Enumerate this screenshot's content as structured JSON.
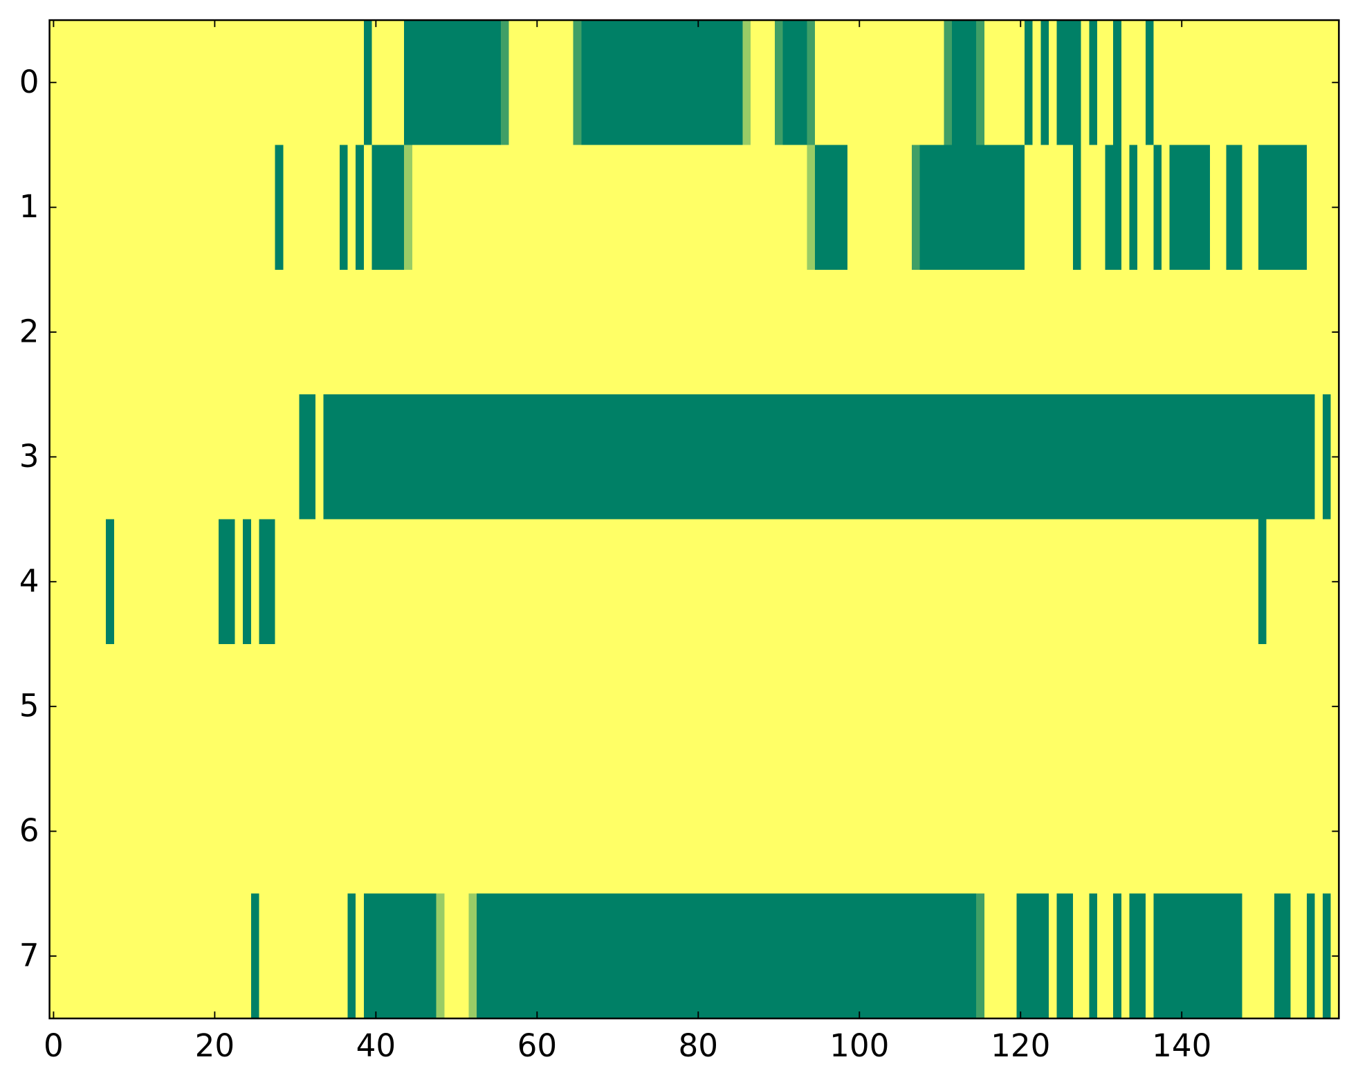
{
  "chart_data": {
    "type": "heatmap",
    "colormap": "summer_r",
    "xlim": [
      -0.5,
      159.5
    ],
    "ylim": [
      7.5,
      -0.5
    ],
    "xticks": [
      0,
      20,
      40,
      60,
      80,
      100,
      120,
      140
    ],
    "yticks": [
      0,
      1,
      2,
      3,
      4,
      5,
      6,
      7
    ],
    "z": [
      [
        0,
        0,
        0,
        0,
        0,
        0,
        0,
        0,
        0,
        0,
        0,
        0,
        0,
        0,
        0,
        0,
        0,
        0,
        0,
        0,
        0,
        0,
        0,
        0,
        0,
        0,
        0,
        0,
        0,
        0,
        0,
        0,
        0,
        0,
        0,
        0,
        0,
        0,
        0,
        1,
        0,
        0,
        0,
        0,
        1,
        1,
        1,
        1,
        1,
        1,
        1,
        1,
        1,
        1,
        1,
        1,
        0.75,
        0,
        0,
        0,
        0,
        0,
        0,
        0,
        0,
        0.75,
        1,
        1,
        1,
        1,
        1,
        1,
        1,
        1,
        1,
        1,
        1,
        1,
        1,
        1,
        1,
        1,
        1,
        1,
        1,
        1,
        0.4,
        0,
        0,
        0,
        0.75,
        1,
        1,
        1,
        0.75,
        0,
        0,
        0,
        0,
        0,
        0,
        0,
        0,
        0,
        0,
        0,
        0,
        0,
        0,
        0,
        0,
        0.75,
        1,
        1,
        1,
        0.75,
        0,
        0,
        0,
        0,
        0,
        1,
        0,
        1,
        0,
        1,
        1,
        1,
        0,
        1,
        0,
        0,
        1,
        0,
        0,
        0,
        1,
        0,
        0,
        0,
        0,
        0,
        0,
        0,
        0,
        0,
        0,
        0,
        0,
        0,
        0,
        0,
        0,
        0,
        0,
        0,
        0,
        0,
        0,
        0
      ],
      [
        0,
        0,
        0,
        0,
        0,
        0,
        0,
        0,
        0,
        0,
        0,
        0,
        0,
        0,
        0,
        0,
        0,
        0,
        0,
        0,
        0,
        0,
        0,
        0,
        0,
        0,
        0,
        0,
        1,
        0,
        0,
        0,
        0,
        0,
        0,
        0,
        1,
        0,
        1,
        0,
        1,
        1,
        1,
        1,
        0.4,
        0,
        0,
        0,
        0,
        0,
        0,
        0,
        0,
        0,
        0,
        0,
        0,
        0,
        0,
        0,
        0,
        0,
        0,
        0,
        0,
        0,
        0,
        0,
        0,
        0,
        0,
        0,
        0,
        0,
        0,
        0,
        0,
        0,
        0,
        0,
        0,
        0,
        0,
        0,
        0,
        0,
        0,
        0,
        0,
        0,
        0,
        0,
        0,
        0,
        0.4,
        1,
        1,
        1,
        1,
        0,
        0,
        0,
        0,
        0,
        0,
        0,
        0,
        0.75,
        1,
        1,
        1,
        1,
        1,
        1,
        1,
        1,
        1,
        1,
        1,
        1,
        1,
        0,
        0,
        0,
        0,
        0,
        0,
        1,
        0,
        0,
        0,
        1,
        1,
        0,
        1,
        0,
        0,
        1,
        0,
        1,
        1,
        1,
        1,
        1,
        0,
        0,
        1,
        1,
        0,
        0,
        1,
        1,
        1,
        1,
        1,
        1,
        0,
        0,
        0,
        0
      ],
      [
        0,
        0,
        0,
        0,
        0,
        0,
        0,
        0,
        0,
        0,
        0,
        0,
        0,
        0,
        0,
        0,
        0,
        0,
        0,
        0,
        0,
        0,
        0,
        0,
        0,
        0,
        0,
        0,
        0,
        0,
        0,
        0,
        0,
        0,
        0,
        0,
        0,
        0,
        0,
        0,
        0,
        0,
        0,
        0,
        0,
        0,
        0,
        0,
        0,
        0,
        0,
        0,
        0,
        0,
        0,
        0,
        0,
        0,
        0,
        0,
        0,
        0,
        0,
        0,
        0,
        0,
        0,
        0,
        0,
        0,
        0,
        0,
        0,
        0,
        0,
        0,
        0,
        0,
        0,
        0,
        0,
        0,
        0,
        0,
        0,
        0,
        0,
        0,
        0,
        0,
        0,
        0,
        0,
        0,
        0,
        0,
        0,
        0,
        0,
        0,
        0,
        0,
        0,
        0,
        0,
        0,
        0,
        0,
        0,
        0,
        0,
        0,
        0,
        0,
        0,
        0,
        0,
        0,
        0,
        0,
        0,
        0,
        0,
        0,
        0,
        0,
        0,
        0,
        0,
        0,
        0,
        0,
        0,
        0,
        0,
        0,
        0,
        0,
        0,
        0,
        0,
        0,
        0,
        0,
        0,
        0,
        0,
        0,
        0,
        0,
        0,
        0,
        0,
        0,
        0,
        0,
        0,
        0,
        0,
        0
      ],
      [
        0,
        0,
        0,
        0,
        0,
        0,
        0,
        0,
        0,
        0,
        0,
        0,
        0,
        0,
        0,
        0,
        0,
        0,
        0,
        0,
        0,
        0,
        0,
        0,
        0,
        0,
        0,
        0,
        0,
        0,
        0,
        1,
        1,
        0,
        1,
        1,
        1,
        1,
        1,
        1,
        1,
        1,
        1,
        1,
        1,
        1,
        1,
        1,
        1,
        1,
        1,
        1,
        1,
        1,
        1,
        1,
        1,
        1,
        1,
        1,
        1,
        1,
        1,
        1,
        1,
        1,
        1,
        1,
        1,
        1,
        1,
        1,
        1,
        1,
        1,
        1,
        1,
        1,
        1,
        1,
        1,
        1,
        1,
        1,
        1,
        1,
        1,
        1,
        1,
        1,
        1,
        1,
        1,
        1,
        1,
        1,
        1,
        1,
        1,
        1,
        1,
        1,
        1,
        1,
        1,
        1,
        1,
        1,
        1,
        1,
        1,
        1,
        1,
        1,
        1,
        1,
        1,
        1,
        1,
        1,
        1,
        1,
        1,
        1,
        1,
        1,
        1,
        1,
        1,
        1,
        1,
        1,
        1,
        1,
        1,
        1,
        1,
        1,
        1,
        1,
        1,
        1,
        1,
        1,
        1,
        1,
        1,
        1,
        1,
        1,
        1,
        1,
        1,
        1,
        1,
        1,
        1,
        0,
        1,
        0
      ],
      [
        0,
        0,
        0,
        0,
        0,
        0,
        0,
        1,
        0,
        0,
        0,
        0,
        0,
        0,
        0,
        0,
        0,
        0,
        0,
        0,
        0,
        1,
        1,
        0,
        1,
        0,
        1,
        1,
        0,
        0,
        0,
        0,
        0,
        0,
        0,
        0,
        0,
        0,
        0,
        0,
        0,
        0,
        0,
        0,
        0,
        0,
        0,
        0,
        0,
        0,
        0,
        0,
        0,
        0,
        0,
        0,
        0,
        0,
        0,
        0,
        0,
        0,
        0,
        0,
        0,
        0,
        0,
        0,
        0,
        0,
        0,
        0,
        0,
        0,
        0,
        0,
        0,
        0,
        0,
        0,
        0,
        0,
        0,
        0,
        0,
        0,
        0,
        0,
        0,
        0,
        0,
        0,
        0,
        0,
        0,
        0,
        0,
        0,
        0,
        0,
        0,
        0,
        0,
        0,
        0,
        0,
        0,
        0,
        0,
        0,
        0,
        0,
        0,
        0,
        0,
        0,
        0,
        0,
        0,
        0,
        0,
        0,
        0,
        0,
        0,
        0,
        0,
        0,
        0,
        0,
        0,
        0,
        0,
        0,
        0,
        0,
        0,
        0,
        0,
        0,
        0,
        0,
        0,
        0,
        0,
        0,
        0,
        0,
        0,
        0,
        1,
        0,
        0,
        0,
        0,
        0,
        0,
        0,
        0,
        0
      ],
      [
        0,
        0,
        0,
        0,
        0,
        0,
        0,
        0,
        0,
        0,
        0,
        0,
        0,
        0,
        0,
        0,
        0,
        0,
        0,
        0,
        0,
        0,
        0,
        0,
        0,
        0,
        0,
        0,
        0,
        0,
        0,
        0,
        0,
        0,
        0,
        0,
        0,
        0,
        0,
        0,
        0,
        0,
        0,
        0,
        0,
        0,
        0,
        0,
        0,
        0,
        0,
        0,
        0,
        0,
        0,
        0,
        0,
        0,
        0,
        0,
        0,
        0,
        0,
        0,
        0,
        0,
        0,
        0,
        0,
        0,
        0,
        0,
        0,
        0,
        0,
        0,
        0,
        0,
        0,
        0,
        0,
        0,
        0,
        0,
        0,
        0,
        0,
        0,
        0,
        0,
        0,
        0,
        0,
        0,
        0,
        0,
        0,
        0,
        0,
        0,
        0,
        0,
        0,
        0,
        0,
        0,
        0,
        0,
        0,
        0,
        0,
        0,
        0,
        0,
        0,
        0,
        0,
        0,
        0,
        0,
        0,
        0,
        0,
        0,
        0,
        0,
        0,
        0,
        0,
        0,
        0,
        0,
        0,
        0,
        0,
        0,
        0,
        0,
        0,
        0,
        0,
        0,
        0,
        0,
        0,
        0,
        0,
        0,
        0,
        0,
        0,
        0,
        0,
        0,
        0,
        0,
        0,
        0,
        0,
        0
      ],
      [
        0,
        0,
        0,
        0,
        0,
        0,
        0,
        0,
        0,
        0,
        0,
        0,
        0,
        0,
        0,
        0,
        0,
        0,
        0,
        0,
        0,
        0,
        0,
        0,
        0,
        0,
        0,
        0,
        0,
        0,
        0,
        0,
        0,
        0,
        0,
        0,
        0,
        0,
        0,
        0,
        0,
        0,
        0,
        0,
        0,
        0,
        0,
        0,
        0,
        0,
        0,
        0,
        0,
        0,
        0,
        0,
        0,
        0,
        0,
        0,
        0,
        0,
        0,
        0,
        0,
        0,
        0,
        0,
        0,
        0,
        0,
        0,
        0,
        0,
        0,
        0,
        0,
        0,
        0,
        0,
        0,
        0,
        0,
        0,
        0,
        0,
        0,
        0,
        0,
        0,
        0,
        0,
        0,
        0,
        0,
        0,
        0,
        0,
        0,
        0,
        0,
        0,
        0,
        0,
        0,
        0,
        0,
        0,
        0,
        0,
        0,
        0,
        0,
        0,
        0,
        0,
        0,
        0,
        0,
        0,
        0,
        0,
        0,
        0,
        0,
        0,
        0,
        0,
        0,
        0,
        0,
        0,
        0,
        0,
        0,
        0,
        0,
        0,
        0,
        0,
        0,
        0,
        0,
        0,
        0,
        0,
        0,
        0,
        0,
        0,
        0,
        0,
        0,
        0,
        0,
        0,
        0,
        0,
        0,
        0
      ],
      [
        0,
        0,
        0,
        0,
        0,
        0,
        0,
        0,
        0,
        0,
        0,
        0,
        0,
        0,
        0,
        0,
        0,
        0,
        0,
        0,
        0,
        0,
        0,
        0,
        0,
        1,
        0,
        0,
        0,
        0,
        0,
        0,
        0,
        0,
        0,
        0,
        0,
        1,
        0,
        1,
        1,
        1,
        1,
        1,
        1,
        1,
        1,
        1,
        0.4,
        0,
        0,
        0,
        0.4,
        1,
        1,
        1,
        1,
        1,
        1,
        1,
        1,
        1,
        1,
        1,
        1,
        1,
        1,
        1,
        1,
        1,
        1,
        1,
        1,
        1,
        1,
        1,
        1,
        1,
        1,
        1,
        1,
        1,
        1,
        1,
        1,
        1,
        1,
        1,
        1,
        1,
        1,
        1,
        1,
        1,
        1,
        1,
        1,
        1,
        1,
        1,
        1,
        1,
        1,
        1,
        1,
        1,
        1,
        1,
        1,
        1,
        1,
        1,
        1,
        1,
        1,
        0.75,
        0,
        0,
        0,
        0,
        1,
        1,
        1,
        1,
        0,
        1,
        1,
        0,
        0,
        1,
        0,
        0,
        1,
        0,
        1,
        1,
        0,
        1,
        1,
        1,
        1,
        1,
        1,
        1,
        1,
        1,
        1,
        1,
        0,
        0,
        0,
        0,
        1,
        1,
        0,
        0,
        1,
        0,
        1,
        0
      ]
    ]
  }
}
